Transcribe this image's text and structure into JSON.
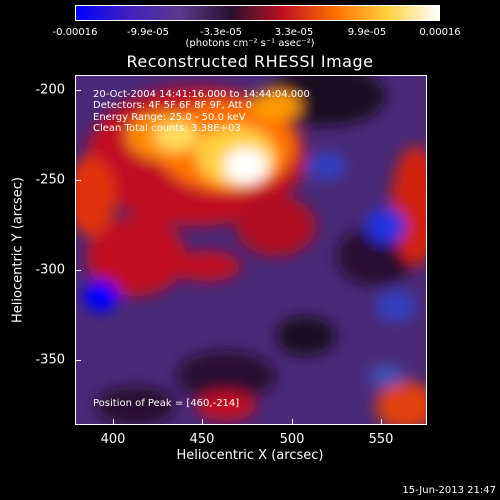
{
  "colorbar": {
    "ticks": [
      "-0.00016",
      "-9.9e-05",
      "-3.3e-05",
      "3.3e-05",
      "9.9e-05",
      "0.00016"
    ],
    "units": "(photons cm⁻² s⁻¹ asec⁻²)",
    "colors": [
      "#0000ff",
      "#4020c0",
      "#5a3a8a",
      "#2a1030",
      "#c01020",
      "#ff7000",
      "#ffd040",
      "#ffffff"
    ]
  },
  "image": {
    "title": "Reconstructed RHESSI Image",
    "annotations": {
      "time": "20-Oct-2004 14:41:16.000 to 14:44:04.000",
      "detectors": "Detectors: 4F 5F 6F 8F 9F, Att 0",
      "energy": "Energy Range: 25.0 - 50.0 keV",
      "clean": "Clean    Total counts: 3.38E+03",
      "peak": "Position of Peak = [460,-214]"
    },
    "x_axis": {
      "label": "Heliocentric X (arcsec)",
      "ticks": [
        "400",
        "450",
        "500",
        "550"
      ]
    },
    "y_axis": {
      "label": "Heliocentric Y (arcsec)",
      "ticks": [
        "-200",
        "-250",
        "-300",
        "-350"
      ]
    }
  },
  "footer": {
    "timestamp": "15-Jun-2013 21:47"
  }
}
